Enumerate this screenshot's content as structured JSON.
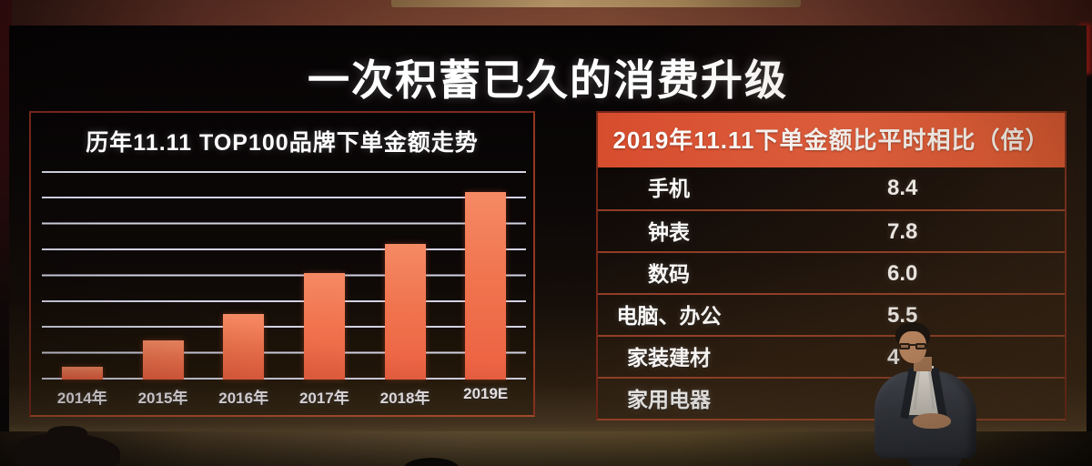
{
  "slide_title": "一次积蓄已久的消费升级",
  "chart_data": [
    {
      "type": "bar",
      "panel": "left",
      "title": "历年11.11 TOP100品牌下单金额走势",
      "categories": [
        "2014年",
        "2015年",
        "2016年",
        "2017年",
        "2018年",
        "2019E"
      ],
      "values": [
        0.5,
        1.5,
        2.5,
        4.1,
        5.2,
        7.2
      ],
      "value_note": "heights read in gridline units; chart shows no numeric y-axis labels",
      "xlabel": "",
      "ylabel": "",
      "ylim": [
        0,
        8
      ],
      "grid": "8 horizontal light gridlines plus baseline on dark background",
      "legend": "none",
      "bar_color": "#f0734f"
    },
    {
      "type": "table",
      "panel": "right",
      "title": "2019年11.11下单金额比平时相比（倍）",
      "rows": [
        {
          "label": "手机",
          "value": "8.4"
        },
        {
          "label": "钟表",
          "value": "7.8"
        },
        {
          "label": "数码",
          "value": "6.0"
        },
        {
          "label": "电脑、办公",
          "value": "5.5"
        },
        {
          "label": "家装建材",
          "value": "4"
        },
        {
          "label": "家用电器",
          "value": ""
        }
      ],
      "note": "value of 家装建材 partially hidden and 家用电器 fully hidden by the presenter standing in front of the screen"
    }
  ],
  "colors": {
    "banner_orange": "#e2573a",
    "bar_top": "#f5865f",
    "bar_bottom": "#ed6141",
    "gridline": "#d2d2e2",
    "panel_border_red": "#7e2a1c",
    "row_separator": "#b04a2e",
    "text_white": "#ffffff"
  }
}
